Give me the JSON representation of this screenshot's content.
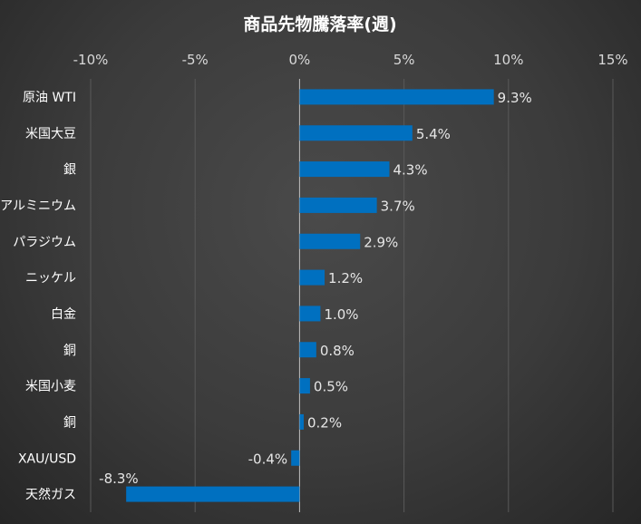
{
  "chart_data": {
    "type": "bar",
    "orientation": "horizontal",
    "title": "商品先物騰落率(週)",
    "categories": [
      "原油 WTI",
      "米国大豆",
      "銀",
      "アルミニウム",
      "パラジウム",
      "ニッケル",
      "白金",
      "銅",
      "米国小麦",
      "銅",
      "XAU/USD",
      "天然ガス"
    ],
    "values": [
      9.3,
      5.4,
      4.3,
      3.7,
      2.9,
      1.2,
      1.0,
      0.8,
      0.5,
      0.2,
      -0.4,
      -8.3
    ],
    "value_labels": [
      "9.3%",
      "5.4%",
      "4.3%",
      "3.7%",
      "2.9%",
      "1.2%",
      "1.0%",
      "0.8%",
      "0.5%",
      "0.2%",
      "-0.4%",
      "-8.3%"
    ],
    "xlim": [
      -10,
      15
    ],
    "xticks": [
      -10,
      -5,
      0,
      5,
      10,
      15
    ],
    "xtick_labels": [
      "-10%",
      "-5%",
      "0%",
      "5%",
      "10%",
      "15%"
    ],
    "x_axis_position": "top",
    "grid": true,
    "legend": "none",
    "bar_color": "#0070c0"
  }
}
